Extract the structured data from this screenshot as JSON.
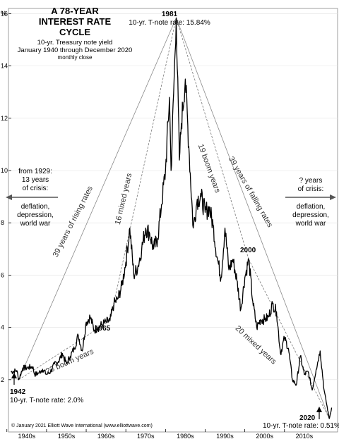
{
  "chart_data": {
    "type": "line",
    "title": "A 78-YEAR INTEREST RATE CYCLE",
    "subtitle_lines": [
      "10-yr. Treasury note yield",
      "January 1940 through December 2020",
      "monthly close"
    ],
    "ylabel": "%",
    "xlim": [
      1939.4,
      2022.4
    ],
    "ylim": [
      0,
      16.2
    ],
    "yticks": [
      2,
      4,
      6,
      8,
      10,
      12,
      14,
      16
    ],
    "xtick_labels": [
      "1940s",
      "1950s",
      "1960s",
      "1970s",
      "1980s",
      "1990s",
      "2000s",
      "2010s"
    ],
    "xtick_positions": [
      1944,
      1954,
      1964,
      1974,
      1984,
      1994,
      2004,
      2014
    ],
    "grid": true,
    "series": [
      {
        "values": [
          [
            1940,
            2.3
          ],
          [
            1941.5,
            2.35
          ],
          [
            1942,
            2.0
          ],
          [
            1943,
            2.45
          ],
          [
            1944,
            2.45
          ],
          [
            1945.5,
            2.5
          ],
          [
            1946,
            2.2
          ],
          [
            1947,
            2.25
          ],
          [
            1948,
            2.4
          ],
          [
            1949,
            2.2
          ],
          [
            1950,
            2.3
          ],
          [
            1951,
            2.6
          ],
          [
            1952,
            2.7
          ],
          [
            1953,
            3.0
          ],
          [
            1954,
            2.6
          ],
          [
            1955,
            2.9
          ],
          [
            1956,
            3.2
          ],
          [
            1957,
            3.7
          ],
          [
            1958,
            3.1
          ],
          [
            1959,
            4.2
          ],
          [
            1960,
            4.4
          ],
          [
            1961,
            3.9
          ],
          [
            1962,
            4.0
          ],
          [
            1963,
            4.1
          ],
          [
            1964,
            4.2
          ],
          [
            1965,
            4.25
          ],
          [
            1966,
            4.9
          ],
          [
            1967,
            5.1
          ],
          [
            1968,
            5.6
          ],
          [
            1969,
            6.5
          ],
          [
            1970,
            7.8
          ],
          [
            1971,
            6.0
          ],
          [
            1972,
            6.3
          ],
          [
            1973,
            7.0
          ],
          [
            1974,
            7.8
          ],
          [
            1975,
            7.6
          ],
          [
            1976,
            7.0
          ],
          [
            1977,
            7.4
          ],
          [
            1978,
            8.7
          ],
          [
            1979,
            10.0
          ],
          [
            1980,
            12.8
          ],
          [
            1980.4,
            10.0
          ],
          [
            1981.7,
            15.84
          ],
          [
            1982.5,
            10.4
          ],
          [
            1983,
            11.8
          ],
          [
            1984,
            13.5
          ],
          [
            1985,
            10.6
          ],
          [
            1986,
            7.8
          ],
          [
            1987,
            8.9
          ],
          [
            1988,
            9.0
          ],
          [
            1989,
            8.4
          ],
          [
            1990,
            8.6
          ],
          [
            1991,
            7.9
          ],
          [
            1992,
            6.7
          ],
          [
            1993,
            5.9
          ],
          [
            1994,
            7.8
          ],
          [
            1995,
            6.2
          ],
          [
            1996,
            6.6
          ],
          [
            1997,
            5.8
          ],
          [
            1998,
            4.7
          ],
          [
            1999,
            5.9
          ],
          [
            2000,
            6.6
          ],
          [
            2001,
            5.0
          ],
          [
            2002,
            4.0
          ],
          [
            2003,
            4.3
          ],
          [
            2004,
            4.3
          ],
          [
            2005,
            4.4
          ],
          [
            2006,
            4.9
          ],
          [
            2007,
            4.6
          ],
          [
            2008,
            3.0
          ],
          [
            2009,
            3.6
          ],
          [
            2010,
            3.2
          ],
          [
            2011,
            2.0
          ],
          [
            2012,
            1.8
          ],
          [
            2013,
            2.9
          ],
          [
            2014,
            2.2
          ],
          [
            2015,
            2.3
          ],
          [
            2016,
            1.6
          ],
          [
            2017,
            2.4
          ],
          [
            2018,
            3.1
          ],
          [
            2019,
            1.6
          ],
          [
            2020.3,
            0.51
          ],
          [
            2020.9,
            0.93
          ]
        ]
      }
    ],
    "reference_lines": [
      {
        "from": [
          1942,
          2.0
        ],
        "to": [
          1981.7,
          15.84
        ],
        "style": "solid"
      },
      {
        "from": [
          1981.7,
          15.84
        ],
        "to": [
          2020.3,
          0.51
        ],
        "style": "solid"
      },
      {
        "from": [
          1942,
          2.0
        ],
        "to": [
          1965,
          4.25
        ],
        "style": "dashed"
      },
      {
        "from": [
          1965,
          4.25
        ],
        "to": [
          1981.7,
          15.84
        ],
        "style": "dashed"
      },
      {
        "from": [
          1981.7,
          15.84
        ],
        "to": [
          2000,
          6.6
        ],
        "style": "dashed"
      },
      {
        "from": [
          2000,
          6.6
        ],
        "to": [
          2020.3,
          0.51
        ],
        "style": "dashed"
      }
    ],
    "annotations": {
      "peak_year": "1981",
      "peak_rate": "10-yr. T-note rate: 15.84%",
      "start_year": "1942",
      "start_rate": "10-yr. T-note rate: 2.0%",
      "end_year": "2020",
      "end_rate": "10-yr. T-note rate: 0.51%",
      "label_1965": "1965",
      "label_2000": "2000",
      "rising": "39 years of rising rates",
      "falling": "39 years of falling rates",
      "mixed_16": "16 mixed years",
      "boom_19": "19 boom years",
      "boom_23": "23 boom years",
      "mixed_20": "20 mixed years",
      "left_note": [
        "from 1929:",
        "13 years",
        "of crisis:",
        "deflation,",
        "depression,",
        "world war"
      ],
      "right_note": [
        "? years",
        "of crisis:",
        "deflation,",
        "depression,",
        "world war"
      ],
      "copyright": "© January 2021 Elliott Wave International (www.elliottwave.com)"
    }
  }
}
